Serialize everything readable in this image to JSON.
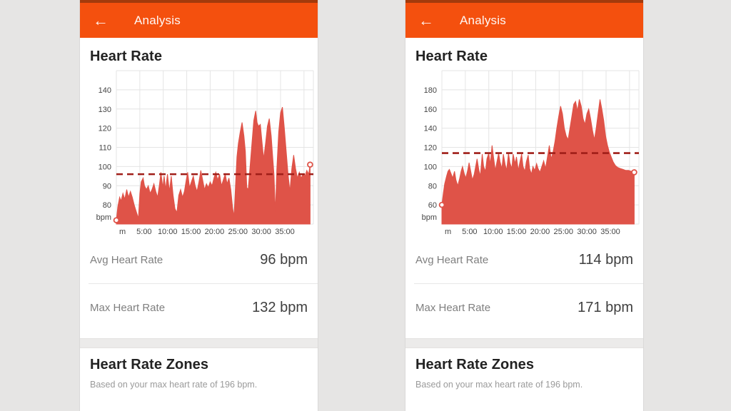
{
  "page": {
    "background": "#E6E5E4"
  },
  "colors": {
    "header_orange": "#F4500E",
    "status_strip": "#A33A0C",
    "series_red": "#DF5348",
    "avg_line_red": "#A01E18",
    "grid": "#E4E4E4",
    "band_gray": "#ECEBEA"
  },
  "phones": [
    {
      "header": {
        "title": "Analysis",
        "back_icon": "left-arrow"
      },
      "section_title": "Heart Rate",
      "chart_data": {
        "type": "area",
        "title": "Heart Rate",
        "series_name": "heart rate (bpm) vs time (min)",
        "xlim": [
          0,
          42
        ],
        "ylim": [
          70,
          150
        ],
        "yticks": [
          80,
          90,
          100,
          110,
          120,
          130,
          140
        ],
        "y_unit_label": "bpm",
        "xticks": [
          0,
          5,
          10,
          15,
          20,
          25,
          30,
          35
        ],
        "xtick_labels": [
          "m",
          "5:00",
          "10:00",
          "15:00",
          "20:00",
          "25:00",
          "30:00",
          "35:00"
        ],
        "x_gridlines": [
          0,
          5,
          10,
          15,
          20,
          25,
          30,
          35,
          40
        ],
        "avg_line": 96,
        "grid": true,
        "points": [
          [
            0,
            72
          ],
          [
            0.3,
            79
          ],
          [
            0.7,
            84
          ],
          [
            1,
            82
          ],
          [
            1.4,
            86
          ],
          [
            1.8,
            83
          ],
          [
            2.2,
            88
          ],
          [
            2.6,
            84
          ],
          [
            3,
            87
          ],
          [
            3.4,
            84
          ],
          [
            3.8,
            80
          ],
          [
            4.3,
            76
          ],
          [
            4.7,
            73
          ],
          [
            5,
            86
          ],
          [
            5.3,
            92
          ],
          [
            5.7,
            94
          ],
          [
            6,
            90
          ],
          [
            6.4,
            88
          ],
          [
            6.8,
            90
          ],
          [
            7.2,
            86
          ],
          [
            7.6,
            88
          ],
          [
            8,
            91
          ],
          [
            8.4,
            87
          ],
          [
            8.8,
            84
          ],
          [
            9.2,
            91
          ],
          [
            9.5,
            97
          ],
          [
            9.9,
            89
          ],
          [
            10.2,
            95
          ],
          [
            10.5,
            88
          ],
          [
            10.9,
            96
          ],
          [
            11.3,
            87
          ],
          [
            11.7,
            95
          ],
          [
            12.1,
            85
          ],
          [
            12.5,
            78
          ],
          [
            12.9,
            76
          ],
          [
            13.3,
            85
          ],
          [
            13.7,
            88
          ],
          [
            14.1,
            84
          ],
          [
            14.5,
            87
          ],
          [
            14.9,
            93
          ],
          [
            15.2,
            97
          ],
          [
            15.6,
            89
          ],
          [
            16,
            92
          ],
          [
            16.4,
            95
          ],
          [
            16.8,
            90
          ],
          [
            17.2,
            87
          ],
          [
            17.6,
            92
          ],
          [
            18,
            98
          ],
          [
            18.4,
            93
          ],
          [
            18.8,
            88
          ],
          [
            19.2,
            91
          ],
          [
            19.6,
            89
          ],
          [
            20,
            92
          ],
          [
            20.4,
            90
          ],
          [
            20.8,
            94
          ],
          [
            21.2,
            97
          ],
          [
            21.6,
            93
          ],
          [
            22,
            96
          ],
          [
            22.4,
            90
          ],
          [
            22.8,
            93
          ],
          [
            23.2,
            96
          ],
          [
            23.6,
            91
          ],
          [
            24,
            94
          ],
          [
            24.4,
            88
          ],
          [
            24.8,
            78
          ],
          [
            25.1,
            74
          ],
          [
            25.4,
            90
          ],
          [
            25.7,
            105
          ],
          [
            26,
            112
          ],
          [
            26.4,
            118
          ],
          [
            26.8,
            123
          ],
          [
            27.2,
            116
          ],
          [
            27.5,
            108
          ],
          [
            27.8,
            89
          ],
          [
            28.1,
            88
          ],
          [
            28.5,
            100
          ],
          [
            28.9,
            112
          ],
          [
            29.3,
            124
          ],
          [
            29.7,
            129
          ],
          [
            30,
            123
          ],
          [
            30.3,
            121
          ],
          [
            30.7,
            122
          ],
          [
            31,
            114
          ],
          [
            31.4,
            104
          ],
          [
            31.8,
            112
          ],
          [
            32.2,
            121
          ],
          [
            32.6,
            125
          ],
          [
            33,
            116
          ],
          [
            33.3,
            106
          ],
          [
            33.6,
            96
          ],
          [
            33.9,
            76
          ],
          [
            34.2,
            98
          ],
          [
            34.6,
            118
          ],
          [
            35,
            128
          ],
          [
            35.4,
            131
          ],
          [
            35.8,
            120
          ],
          [
            36.2,
            108
          ],
          [
            36.6,
            96
          ],
          [
            37,
            87
          ],
          [
            37.4,
            99
          ],
          [
            37.8,
            106
          ],
          [
            38.2,
            99
          ],
          [
            38.6,
            94
          ],
          [
            39,
            97
          ],
          [
            39.4,
            94
          ],
          [
            39.8,
            96
          ],
          [
            40.2,
            95
          ],
          [
            40.6,
            98
          ],
          [
            41,
            96
          ],
          [
            41.3,
            101
          ]
        ]
      },
      "stats": [
        {
          "label": "Avg Heart Rate",
          "value": "96 bpm"
        },
        {
          "label": "Max Heart Rate",
          "value": "132 bpm"
        }
      ],
      "zones": {
        "title": "Heart Rate Zones",
        "subtitle": "Based on your max heart rate of 196 bpm."
      }
    },
    {
      "header": {
        "title": "Analysis",
        "back_icon": "left-arrow"
      },
      "section_title": "Heart Rate",
      "chart_data": {
        "type": "area",
        "title": "Heart Rate",
        "series_name": "heart rate (bpm) vs time (min)",
        "xlim": [
          0,
          42
        ],
        "ylim": [
          40,
          200
        ],
        "yticks": [
          60,
          80,
          100,
          120,
          140,
          160,
          180
        ],
        "y_unit_label": "bpm",
        "xticks": [
          0,
          5,
          10,
          15,
          20,
          25,
          30,
          35
        ],
        "xtick_labels": [
          "m",
          "5:00",
          "10:00",
          "15:00",
          "20:00",
          "25:00",
          "30:00",
          "35:00"
        ],
        "x_gridlines": [
          0,
          5,
          10,
          15,
          20,
          25,
          30,
          35,
          40
        ],
        "avg_line": 114,
        "grid": true,
        "points": [
          [
            0,
            60
          ],
          [
            0.3,
            72
          ],
          [
            0.6,
            82
          ],
          [
            1,
            90
          ],
          [
            1.3,
            95
          ],
          [
            1.6,
            97
          ],
          [
            2,
            92
          ],
          [
            2.3,
            88
          ],
          [
            2.7,
            95
          ],
          [
            3,
            86
          ],
          [
            3.4,
            80
          ],
          [
            3.8,
            88
          ],
          [
            4.1,
            95
          ],
          [
            4.4,
            100
          ],
          [
            4.8,
            92
          ],
          [
            5.1,
            88
          ],
          [
            5.5,
            96
          ],
          [
            5.8,
            104
          ],
          [
            6.2,
            94
          ],
          [
            6.5,
            86
          ],
          [
            6.9,
            92
          ],
          [
            7.2,
            100
          ],
          [
            7.5,
            108
          ],
          [
            7.9,
            96
          ],
          [
            8.2,
            90
          ],
          [
            8.6,
            113
          ],
          [
            8.9,
            100
          ],
          [
            9.3,
            95
          ],
          [
            9.6,
            108
          ],
          [
            10,
            114
          ],
          [
            10.3,
            102
          ],
          [
            10.7,
            122
          ],
          [
            11,
            110
          ],
          [
            11.4,
            96
          ],
          [
            11.7,
            104
          ],
          [
            12.1,
            114
          ],
          [
            12.4,
            105
          ],
          [
            12.8,
            98
          ],
          [
            13.1,
            113
          ],
          [
            13.5,
            102
          ],
          [
            13.8,
            96
          ],
          [
            14.2,
            114
          ],
          [
            14.5,
            104
          ],
          [
            14.9,
            98
          ],
          [
            15.2,
            113
          ],
          [
            15.6,
            103
          ],
          [
            15.9,
            110
          ],
          [
            16.3,
            96
          ],
          [
            16.6,
            104
          ],
          [
            17,
            113
          ],
          [
            17.3,
            100
          ],
          [
            17.7,
            95
          ],
          [
            18,
            105
          ],
          [
            18.4,
            112
          ],
          [
            18.7,
            98
          ],
          [
            19.1,
            92
          ],
          [
            19.4,
            100
          ],
          [
            19.8,
            96
          ],
          [
            20.2,
            103
          ],
          [
            20.5,
            98
          ],
          [
            20.9,
            94
          ],
          [
            21.3,
            100
          ],
          [
            21.7,
            106
          ],
          [
            22.1,
            98
          ],
          [
            22.5,
            110
          ],
          [
            22.9,
            122
          ],
          [
            23.3,
            108
          ],
          [
            23.7,
            115
          ],
          [
            24.1,
            126
          ],
          [
            24.5,
            140
          ],
          [
            24.9,
            152
          ],
          [
            25.3,
            163
          ],
          [
            25.7,
            155
          ],
          [
            26.1,
            140
          ],
          [
            26.5,
            132
          ],
          [
            26.9,
            128
          ],
          [
            27.3,
            140
          ],
          [
            27.7,
            152
          ],
          [
            28.1,
            165
          ],
          [
            28.5,
            168
          ],
          [
            28.9,
            158
          ],
          [
            29.3,
            170
          ],
          [
            29.7,
            163
          ],
          [
            30.1,
            150
          ],
          [
            30.5,
            144
          ],
          [
            30.9,
            155
          ],
          [
            31.3,
            160
          ],
          [
            31.7,
            150
          ],
          [
            32.1,
            138
          ],
          [
            32.5,
            128
          ],
          [
            32.9,
            140
          ],
          [
            33.3,
            155
          ],
          [
            33.7,
            170
          ],
          [
            34.1,
            160
          ],
          [
            34.5,
            148
          ],
          [
            34.9,
            132
          ],
          [
            35.3,
            122
          ],
          [
            35.7,
            115
          ],
          [
            36.1,
            110
          ],
          [
            36.5,
            105
          ],
          [
            37,
            101
          ],
          [
            37.5,
            99
          ],
          [
            38,
            98
          ],
          [
            38.6,
            97
          ],
          [
            39.2,
            96
          ],
          [
            39.8,
            96
          ],
          [
            40.4,
            95
          ],
          [
            41,
            94
          ]
        ]
      },
      "stats": [
        {
          "label": "Avg Heart Rate",
          "value": "114 bpm"
        },
        {
          "label": "Max Heart Rate",
          "value": "171 bpm"
        }
      ],
      "zones": {
        "title": "Heart Rate Zones",
        "subtitle": "Based on your max heart rate of 196 bpm."
      }
    }
  ]
}
